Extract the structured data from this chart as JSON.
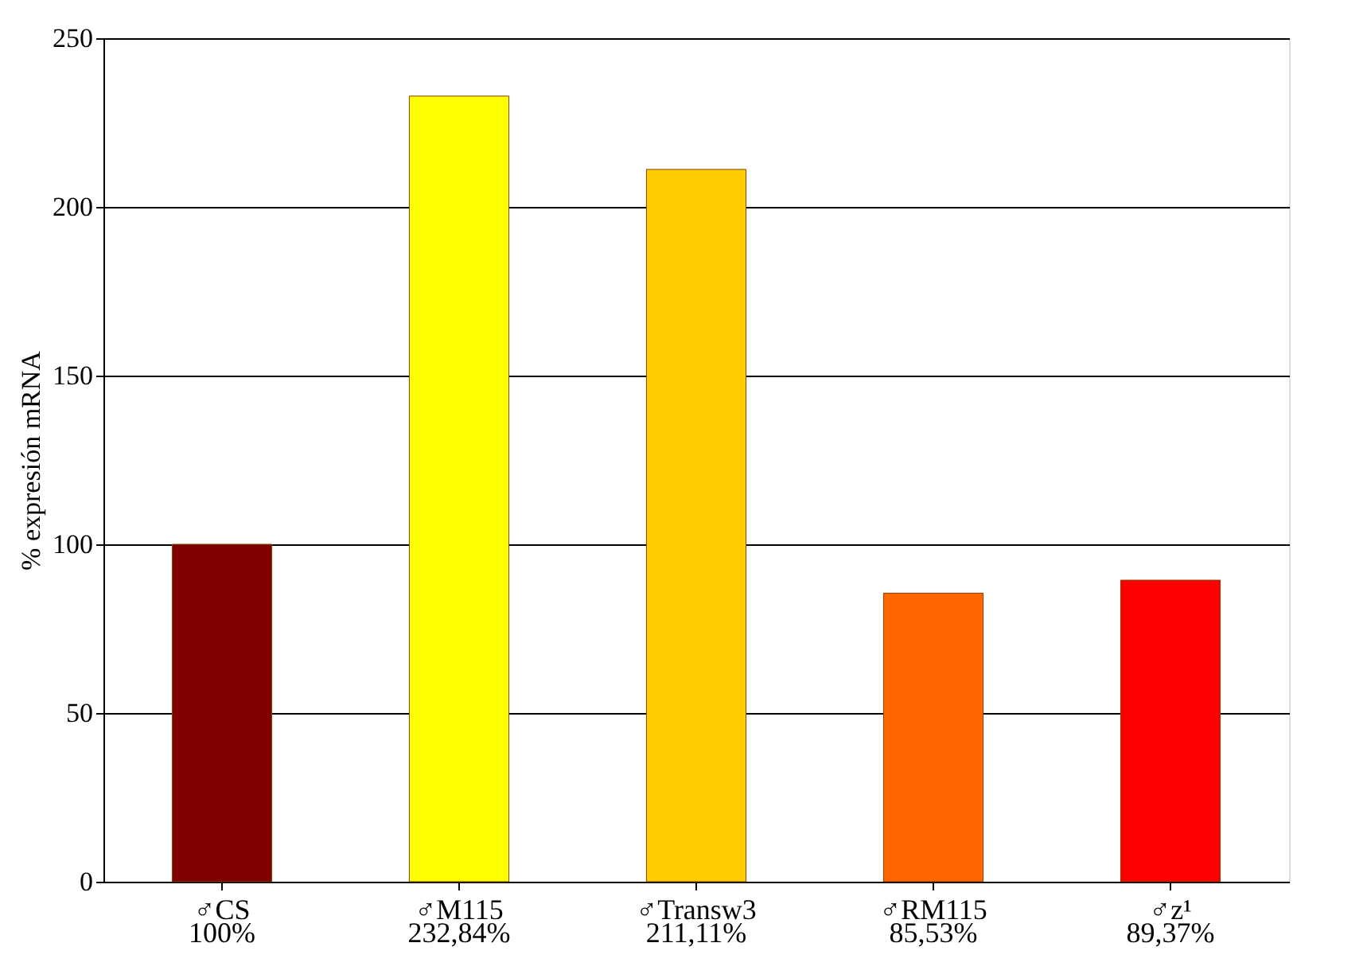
{
  "chart_data": {
    "type": "bar",
    "ylabel": "% expresión mRNA",
    "categories": [
      "♂CS",
      "♂M115",
      "♂Transw3",
      "♂RM115",
      "♂z¹"
    ],
    "values": [
      100,
      232.84,
      211.11,
      85.53,
      89.37
    ],
    "value_labels": [
      "100%",
      "232,84%",
      "211,11%",
      "85,53%",
      "89,37%"
    ],
    "colors": [
      "#800000",
      "#ffff00",
      "#ffcc00",
      "#ff6600",
      "#ff0000"
    ],
    "ylim": [
      0,
      250
    ],
    "yticks": [
      0,
      50,
      100,
      150,
      200,
      250
    ],
    "grid": "y"
  }
}
